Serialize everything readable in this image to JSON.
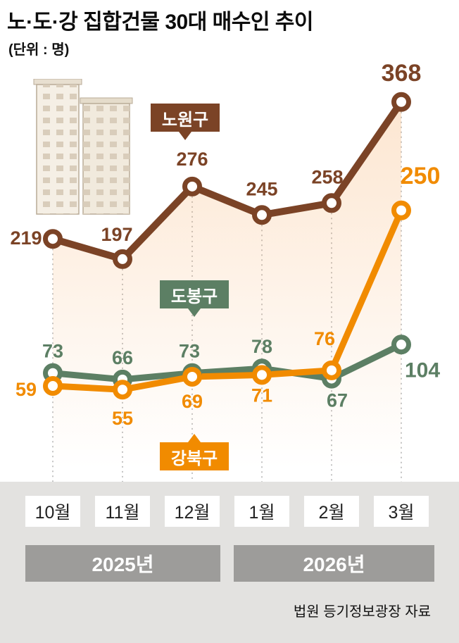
{
  "unit_label": "(단위 : 명)",
  "source": "법원 등기정보광장 자료",
  "chart_data": {
    "type": "line",
    "title": "노·도·강 집합건물 30대 매수인 추이",
    "categories": [
      "10월",
      "11월",
      "12월",
      "1월",
      "2월",
      "3월"
    ],
    "year_groups": [
      {
        "label": "2025년",
        "months": [
          "10월",
          "11월",
          "12월"
        ]
      },
      {
        "label": "2026년",
        "months": [
          "1월",
          "2월",
          "3월"
        ]
      }
    ],
    "series": [
      {
        "name": "노원구",
        "color": "#7b4326",
        "values": [
          219,
          197,
          276,
          245,
          258,
          368
        ]
      },
      {
        "name": "도봉구",
        "color": "#5c7f64",
        "values": [
          73,
          66,
          73,
          78,
          67,
          104
        ]
      },
      {
        "name": "강북구",
        "color": "#f18b00",
        "values": [
          59,
          55,
          69,
          71,
          76,
          250
        ]
      }
    ],
    "ylim": [
      0,
      400
    ],
    "xlabel": "",
    "ylabel": "명",
    "grid": "dotted-vertical-guides",
    "legend_position": "inline-callouts"
  }
}
